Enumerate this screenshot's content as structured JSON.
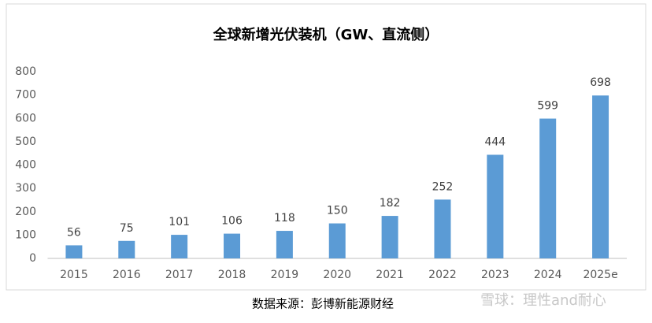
{
  "chart_data": {
    "type": "bar",
    "title": "全球新增光伏装机（GW、直流侧）",
    "categories": [
      "2015",
      "2016",
      "2017",
      "2018",
      "2019",
      "2020",
      "2021",
      "2022",
      "2023",
      "2024",
      "2025e"
    ],
    "values": [
      56,
      75,
      101,
      106,
      118,
      150,
      182,
      252,
      444,
      599,
      698
    ],
    "color": "#5b9bd5",
    "ylim": [
      0,
      800
    ],
    "yticks": [
      0,
      100,
      200,
      300,
      400,
      500,
      600,
      700,
      800
    ],
    "grid": false
  },
  "source": "数据来源：彭博新能源财经",
  "watermark": "雪球：理性and耐心"
}
